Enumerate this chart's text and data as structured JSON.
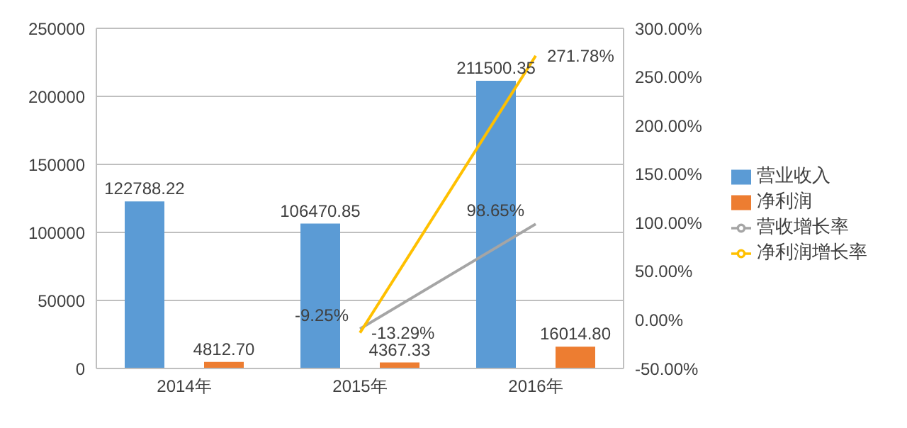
{
  "chart_data": {
    "type": "bar",
    "categories": [
      "2014年",
      "2015年",
      "2016年"
    ],
    "series": [
      {
        "name": "营业收入",
        "color": "#5b9bd5",
        "values": [
          122788.22,
          106470.85,
          211500.35
        ],
        "value_labels": [
          "122788.22",
          "106470.85",
          "211500.35"
        ]
      },
      {
        "name": "净利润",
        "color": "#ed7d31",
        "values": [
          4812.7,
          4367.33,
          16014.8
        ],
        "value_labels": [
          "4812.70",
          "4367.33",
          "16014.80"
        ]
      },
      {
        "name": "营收增长率",
        "type": "line",
        "axis": "y2",
        "color": "#a5a5a5",
        "values": [
          null,
          -9.25,
          98.65
        ],
        "value_labels": [
          null,
          "-9.25%",
          "98.65%"
        ]
      },
      {
        "name": "净利润增长率",
        "type": "line",
        "axis": "y2",
        "color": "#ffc000",
        "values": [
          null,
          -13.29,
          271.78
        ],
        "value_labels": [
          null,
          "-13.29%",
          "271.78%"
        ]
      }
    ],
    "ylim": [
      0,
      250000
    ],
    "yticks": [
      0,
      50000,
      100000,
      150000,
      200000,
      250000
    ],
    "y2lim": [
      -50,
      300
    ],
    "y2ticks": [
      {
        "value": -50,
        "label": "-50.00%"
      },
      {
        "value": 0,
        "label": "0.00%"
      },
      {
        "value": 50,
        "label": "50.00%"
      },
      {
        "value": 100,
        "label": "100.00%"
      },
      {
        "value": 150,
        "label": "150.00%"
      },
      {
        "value": 200,
        "label": "200.00%"
      },
      {
        "value": 250,
        "label": "250.00%"
      },
      {
        "value": 300,
        "label": "300.00%"
      }
    ],
    "grid": "y",
    "legend": "right",
    "marker": "none",
    "line_style": "solid"
  }
}
